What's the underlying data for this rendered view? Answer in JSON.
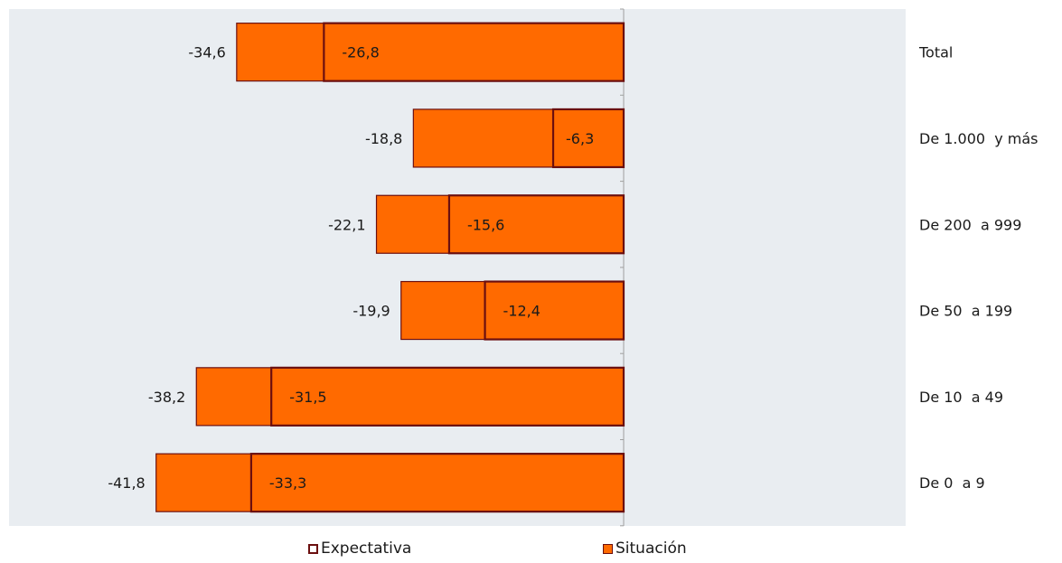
{
  "chart_data": {
    "type": "bar",
    "orientation": "horizontal",
    "categories": [
      "Total",
      "De 1.000  y más",
      "De 200  a 999",
      "De 50  a 199",
      "De 10  a 49",
      "De 0  a 9"
    ],
    "series": [
      {
        "name": "Expectativa",
        "values": [
          -34.6,
          -18.8,
          -22.1,
          -19.9,
          -38.2,
          -41.8
        ],
        "labels": [
          "-34,6",
          "-18,8",
          "-22,1",
          "-19,9",
          "-38,2",
          "-41,8"
        ]
      },
      {
        "name": "Situación",
        "values": [
          -26.8,
          -6.3,
          -15.6,
          -12.4,
          -31.5,
          -33.3
        ],
        "labels": [
          "-26,8",
          "-6,3",
          "-15,6",
          "-12,4",
          "-31,5",
          "-33,3"
        ]
      }
    ],
    "xlim": [
      -45,
      0
    ],
    "legend_position": "bottom",
    "colors": {
      "plot_bg": "#e9edf1",
      "fill": "#ff6a00",
      "border": "#6b0f0f",
      "axis": "#a0a0a0"
    }
  },
  "legend": {
    "expectativa": "Expectativa",
    "situacion": "Situación"
  }
}
